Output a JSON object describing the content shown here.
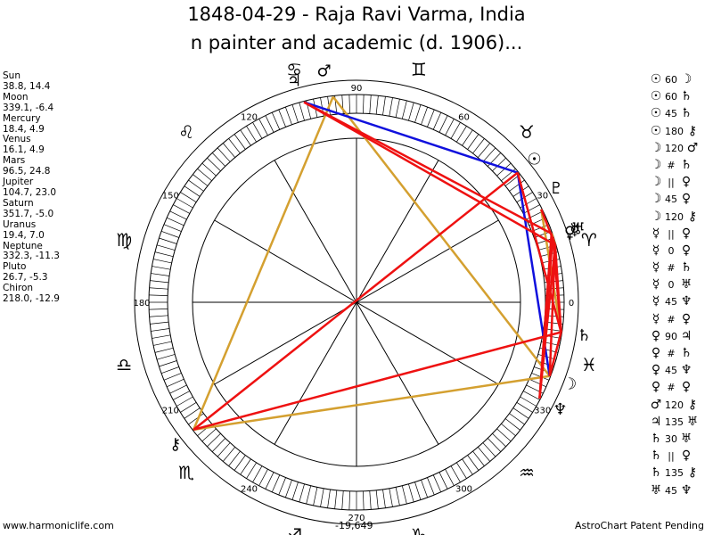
{
  "title_line1": "1848-04-29 - Raja Ravi Varma, India",
  "title_line2": "n painter and academic (d. 1906)...",
  "planets": [
    {
      "name": "Sun",
      "coords": "38.8, 14.4"
    },
    {
      "name": "Moon",
      "coords": "339.1, -6.4"
    },
    {
      "name": "Mercury",
      "coords": "18.4, 4.9"
    },
    {
      "name": "Venus",
      "coords": "16.1, 4.9"
    },
    {
      "name": "Mars",
      "coords": "96.5, 24.8"
    },
    {
      "name": "Jupiter",
      "coords": "104.7, 23.0"
    },
    {
      "name": "Saturn",
      "coords": "351.7, -5.0"
    },
    {
      "name": "Uranus",
      "coords": "19.4, 7.0"
    },
    {
      "name": "Neptune",
      "coords": "332.3, -11.3"
    },
    {
      "name": "Pluto",
      "coords": "26.7, -5.3"
    },
    {
      "name": "Chiron",
      "coords": "218.0, -12.9"
    }
  ],
  "planet_glyphs": {
    "sun": "☉",
    "moon": "☽",
    "mercury": "☿",
    "venus": "♀",
    "mars": "♂",
    "jupiter": "♃",
    "saturn": "♄",
    "uranus": "♅",
    "neptune": "♆",
    "pluto": "♇",
    "chiron": "⚷"
  },
  "zodiac_glyphs": [
    "♈",
    "♉",
    "♊",
    "♋",
    "♌",
    "♍",
    "♎",
    "♏",
    "♐",
    "♑",
    "♒",
    "♓"
  ],
  "degree_labels": [
    "0",
    "30",
    "60",
    "90",
    "120",
    "150",
    "180",
    "210",
    "240",
    "270",
    "300",
    "330"
  ],
  "aspects": [
    {
      "p1": "☉",
      "angle": "60",
      "p2": "☽"
    },
    {
      "p1": "☉",
      "angle": "60",
      "p2": "♄"
    },
    {
      "p1": "☉",
      "angle": "45",
      "p2": "♄"
    },
    {
      "p1": "☉",
      "angle": "180",
      "p2": "⚷"
    },
    {
      "p1": "☽",
      "angle": "120",
      "p2": "♂"
    },
    {
      "p1": "☽",
      "angle": "#",
      "p2": "♄"
    },
    {
      "p1": "☽",
      "angle": "||",
      "p2": "♀"
    },
    {
      "p1": "☽",
      "angle": "45",
      "p2": "♀"
    },
    {
      "p1": "☽",
      "angle": "120",
      "p2": "⚷"
    },
    {
      "p1": "☿",
      "angle": "||",
      "p2": "♀"
    },
    {
      "p1": "☿",
      "angle": "0",
      "p2": "♀"
    },
    {
      "p1": "☿",
      "angle": "#",
      "p2": "♄"
    },
    {
      "p1": "☿",
      "angle": "0",
      "p2": "♅"
    },
    {
      "p1": "☿",
      "angle": "45",
      "p2": "♆"
    },
    {
      "p1": "☿",
      "angle": "#",
      "p2": "♀"
    },
    {
      "p1": "♀",
      "angle": "90",
      "p2": "♃"
    },
    {
      "p1": "♀",
      "angle": "#",
      "p2": "♄"
    },
    {
      "p1": "♀",
      "angle": "45",
      "p2": "♆"
    },
    {
      "p1": "♀",
      "angle": "#",
      "p2": "♀"
    },
    {
      "p1": "♂",
      "angle": "120",
      "p2": "⚷"
    },
    {
      "p1": "♃",
      "angle": "135",
      "p2": "♅"
    },
    {
      "p1": "♄",
      "angle": "30",
      "p2": "♅"
    },
    {
      "p1": "♄",
      "angle": "||",
      "p2": "♀"
    },
    {
      "p1": "♄",
      "angle": "135",
      "p2": "⚷"
    },
    {
      "p1": "♅",
      "angle": "45",
      "p2": "♆"
    }
  ],
  "footer": {
    "website": "www.harmoniclife.com",
    "offset": "-19,649",
    "credit": "AstroChart Patent Pending"
  },
  "colors": {
    "conjunction_line": "#e8a010",
    "trine_line": "#d4a030",
    "hard_line": "#ee1111",
    "sextile_line": "#1010dd"
  }
}
